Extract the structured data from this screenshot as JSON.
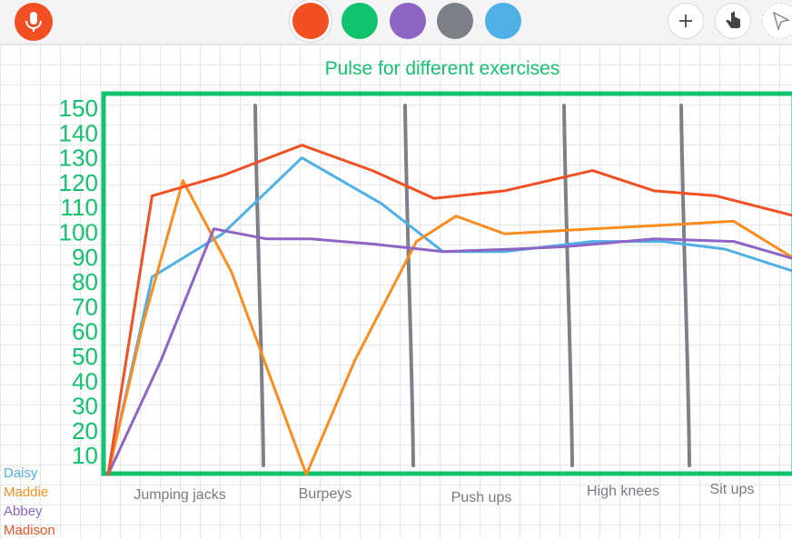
{
  "toolbar": {
    "colors": [
      "#f25022",
      "#12c36e",
      "#8e64c4",
      "#7b8089",
      "#4fb0e6"
    ],
    "selected_color": "#f25022",
    "icons": [
      "microphone-icon",
      "plus-icon",
      "hand-pointer-icon",
      "cursor-icon"
    ]
  },
  "chart_data": {
    "type": "line",
    "title": "Pulse for different exercises",
    "title_color": "#12c36e",
    "ylim": [
      0,
      150
    ],
    "yticks": [
      "150",
      "140",
      "130",
      "120",
      "110",
      "100",
      "90",
      "80",
      "70",
      "60",
      "50",
      "40",
      "30",
      "20",
      "10"
    ],
    "categories": [
      "Jumping jacks",
      "Burpeys",
      "Push ups",
      "High knees",
      "Sit ups"
    ],
    "series": [
      {
        "name": "Daisy",
        "color": "#4fb0e6",
        "points": [
          [
            0,
            0
          ],
          [
            0.5,
            78
          ],
          [
            1.3,
            95
          ],
          [
            2.2,
            125
          ],
          [
            3.1,
            107
          ],
          [
            3.8,
            88
          ],
          [
            4.5,
            88
          ],
          [
            5.5,
            92
          ],
          [
            6.3,
            92
          ],
          [
            7.0,
            89
          ],
          [
            7.8,
            80
          ]
        ]
      },
      {
        "name": "Maddie",
        "color": "#fb8c1f",
        "points": [
          [
            0,
            0
          ],
          [
            0.4,
            60
          ],
          [
            0.85,
            116
          ],
          [
            1.4,
            80
          ],
          [
            2.25,
            0
          ],
          [
            2.8,
            45
          ],
          [
            3.5,
            92
          ],
          [
            3.95,
            102
          ],
          [
            4.5,
            95
          ],
          [
            5.5,
            97
          ],
          [
            6.6,
            99
          ],
          [
            7.1,
            100
          ],
          [
            7.8,
            85
          ]
        ]
      },
      {
        "name": "Abbey",
        "color": "#8e64c4",
        "points": [
          [
            0,
            0
          ],
          [
            0.6,
            45
          ],
          [
            1.2,
            97
          ],
          [
            1.8,
            93
          ],
          [
            2.3,
            93
          ],
          [
            3.0,
            91
          ],
          [
            3.8,
            88
          ],
          [
            4.6,
            89
          ],
          [
            5.2,
            90
          ],
          [
            6.2,
            93
          ],
          [
            7.1,
            92
          ],
          [
            7.8,
            85
          ]
        ]
      },
      {
        "name": "Madison",
        "color": "#f25022",
        "points": [
          [
            0,
            0
          ],
          [
            0.5,
            110
          ],
          [
            1.3,
            118
          ],
          [
            2.2,
            130
          ],
          [
            3.0,
            120
          ],
          [
            3.7,
            109
          ],
          [
            4.5,
            112
          ],
          [
            5.5,
            120
          ],
          [
            6.2,
            112
          ],
          [
            6.9,
            110
          ],
          [
            7.8,
            102
          ]
        ]
      }
    ]
  }
}
